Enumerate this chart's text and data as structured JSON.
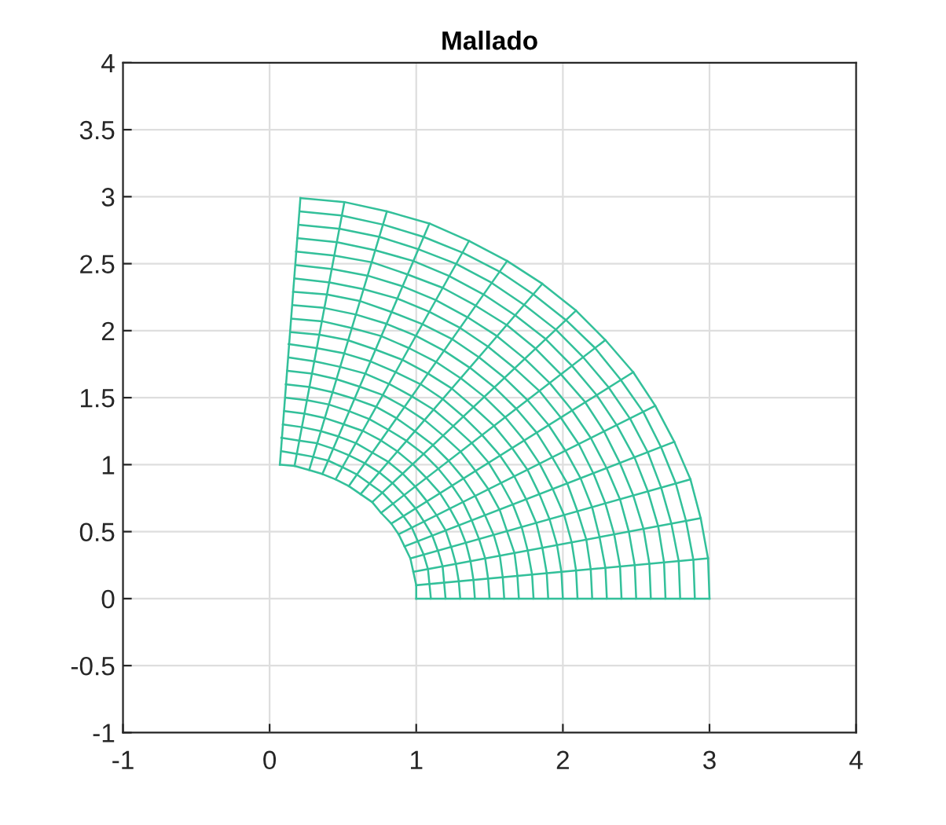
{
  "chart_data": {
    "type": "line",
    "title": "Mallado",
    "xlim": [
      -1,
      4
    ],
    "ylim": [
      -1,
      4
    ],
    "xticks": [
      -1,
      0,
      1,
      2,
      3,
      4
    ],
    "yticks": [
      -1,
      -0.5,
      0,
      0.5,
      1,
      1.5,
      2,
      2.5,
      3,
      3.5,
      4
    ],
    "grid": true,
    "series": [
      {
        "color": "#33c09a",
        "x": [
          1.0,
          1.0,
          0.98,
          0.96,
          0.92,
          0.88,
          0.83,
          0.76,
          0.7,
          0.62,
          0.54,
          0.45,
          0.36,
          0.27,
          0.17,
          0.07
        ],
        "values": [
          0.0,
          0.1,
          0.2,
          0.3,
          0.39,
          0.48,
          0.56,
          0.64,
          0.72,
          0.78,
          0.84,
          0.89,
          0.93,
          0.96,
          0.99,
          1.0
        ]
      },
      {
        "color": "#33c09a",
        "x": [
          1.1,
          1.09,
          1.08,
          1.05,
          1.01,
          0.97,
          0.91,
          0.84,
          0.77,
          0.68,
          0.59,
          0.5,
          0.4,
          0.29,
          0.19,
          0.08
        ],
        "values": [
          0.0,
          0.11,
          0.22,
          0.33,
          0.43,
          0.53,
          0.62,
          0.71,
          0.79,
          0.86,
          0.93,
          0.98,
          1.03,
          1.06,
          1.08,
          1.1
        ]
      },
      {
        "color": "#33c09a",
        "x": [
          1.2,
          1.19,
          1.18,
          1.15,
          1.11,
          1.05,
          0.99,
          0.92,
          0.84,
          0.75,
          0.65,
          0.54,
          0.43,
          0.32,
          0.2,
          0.08
        ],
        "values": [
          0.0,
          0.12,
          0.24,
          0.35,
          0.47,
          0.58,
          0.68,
          0.77,
          0.86,
          0.94,
          1.01,
          1.07,
          1.12,
          1.16,
          1.18,
          1.2
        ]
      },
      {
        "color": "#33c09a",
        "x": [
          1.3,
          1.29,
          1.27,
          1.24,
          1.2,
          1.14,
          1.07,
          0.99,
          0.91,
          0.81,
          0.7,
          0.59,
          0.47,
          0.35,
          0.22,
          0.09
        ],
        "values": [
          0.0,
          0.13,
          0.26,
          0.38,
          0.51,
          0.62,
          0.73,
          0.84,
          0.93,
          1.02,
          1.09,
          1.16,
          1.21,
          1.25,
          1.28,
          1.3
        ]
      },
      {
        "color": "#33c09a",
        "x": [
          1.4,
          1.39,
          1.37,
          1.34,
          1.29,
          1.23,
          1.16,
          1.07,
          0.98,
          0.87,
          0.76,
          0.64,
          0.51,
          0.37,
          0.24,
          0.1
        ],
        "values": [
          0.0,
          0.14,
          0.28,
          0.41,
          0.55,
          0.67,
          0.79,
          0.9,
          1.0,
          1.1,
          1.18,
          1.25,
          1.3,
          1.35,
          1.38,
          1.4
        ]
      },
      {
        "color": "#33c09a",
        "x": [
          1.5,
          1.49,
          1.47,
          1.43,
          1.38,
          1.32,
          1.24,
          1.15,
          1.05,
          0.93,
          0.81,
          0.68,
          0.54,
          0.4,
          0.26,
          0.11
        ],
        "values": [
          0.0,
          0.15,
          0.3,
          0.44,
          0.58,
          0.72,
          0.85,
          0.97,
          1.08,
          1.18,
          1.26,
          1.34,
          1.4,
          1.45,
          1.48,
          1.5
        ]
      },
      {
        "color": "#33c09a",
        "x": [
          1.6,
          1.59,
          1.57,
          1.53,
          1.47,
          1.4,
          1.32,
          1.22,
          1.11,
          0.99,
          0.86,
          0.73,
          0.58,
          0.43,
          0.27,
          0.11
        ],
        "values": [
          0.0,
          0.16,
          0.32,
          0.47,
          0.62,
          0.77,
          0.9,
          1.03,
          1.15,
          1.25,
          1.35,
          1.43,
          1.49,
          1.54,
          1.58,
          1.6
        ]
      },
      {
        "color": "#33c09a",
        "x": [
          1.7,
          1.69,
          1.67,
          1.62,
          1.57,
          1.49,
          1.4,
          1.3,
          1.18,
          1.06,
          0.92,
          0.77,
          0.62,
          0.45,
          0.29,
          0.12
        ],
        "values": [
          0.0,
          0.17,
          0.34,
          0.5,
          0.66,
          0.82,
          0.96,
          1.1,
          1.22,
          1.33,
          1.43,
          1.52,
          1.58,
          1.64,
          1.68,
          1.7
        ]
      },
      {
        "color": "#33c09a",
        "x": [
          1.8,
          1.79,
          1.76,
          1.72,
          1.66,
          1.58,
          1.49,
          1.38,
          1.25,
          1.12,
          0.97,
          0.82,
          0.65,
          0.48,
          0.31,
          0.13
        ],
        "values": [
          0.0,
          0.18,
          0.36,
          0.53,
          0.7,
          0.86,
          1.02,
          1.16,
          1.29,
          1.41,
          1.51,
          1.6,
          1.68,
          1.73,
          1.77,
          1.8
        ]
      },
      {
        "color": "#33c09a",
        "x": [
          1.9,
          1.89,
          1.86,
          1.82,
          1.75,
          1.67,
          1.57,
          1.45,
          1.32,
          1.18,
          1.03,
          0.86,
          0.69,
          0.51,
          0.32,
          0.13
        ],
        "values": [
          0.0,
          0.19,
          0.38,
          0.56,
          0.74,
          0.91,
          1.07,
          1.22,
          1.36,
          1.49,
          1.6,
          1.69,
          1.77,
          1.83,
          1.87,
          1.9
        ]
      },
      {
        "color": "#33c09a",
        "x": [
          2.0,
          1.99,
          1.96,
          1.91,
          1.84,
          1.76,
          1.65,
          1.53,
          1.39,
          1.24,
          1.08,
          0.91,
          0.72,
          0.53,
          0.34,
          0.14
        ],
        "values": [
          0.0,
          0.2,
          0.4,
          0.59,
          0.78,
          0.96,
          1.13,
          1.29,
          1.43,
          1.57,
          1.68,
          1.78,
          1.86,
          1.93,
          1.97,
          1.99
        ]
      },
      {
        "color": "#33c09a",
        "x": [
          2.1,
          2.09,
          2.06,
          2.01,
          1.93,
          1.84,
          1.73,
          1.61,
          1.46,
          1.31,
          1.13,
          0.95,
          0.76,
          0.56,
          0.36,
          0.15
        ],
        "values": [
          0.0,
          0.21,
          0.42,
          0.62,
          0.82,
          1.01,
          1.19,
          1.35,
          1.51,
          1.64,
          1.77,
          1.87,
          1.96,
          2.02,
          2.07,
          2.09
        ]
      },
      {
        "color": "#33c09a",
        "x": [
          2.2,
          2.19,
          2.16,
          2.1,
          2.03,
          1.93,
          1.82,
          1.68,
          1.53,
          1.37,
          1.19,
          1.0,
          0.8,
          0.59,
          0.37,
          0.16
        ],
        "values": [
          0.0,
          0.22,
          0.44,
          0.65,
          0.86,
          1.05,
          1.24,
          1.42,
          1.58,
          1.72,
          1.85,
          1.96,
          2.05,
          2.12,
          2.17,
          2.19
        ]
      },
      {
        "color": "#33c09a",
        "x": [
          2.3,
          2.29,
          2.25,
          2.2,
          2.12,
          2.02,
          1.9,
          1.76,
          1.6,
          1.43,
          1.24,
          1.04,
          0.83,
          0.62,
          0.39,
          0.16
        ],
        "values": [
          0.0,
          0.23,
          0.46,
          0.68,
          0.9,
          1.1,
          1.3,
          1.48,
          1.65,
          1.8,
          1.94,
          2.05,
          2.14,
          2.22,
          2.27,
          2.29
        ]
      },
      {
        "color": "#33c09a",
        "x": [
          2.4,
          2.39,
          2.35,
          2.29,
          2.21,
          2.11,
          1.98,
          1.84,
          1.67,
          1.49,
          1.3,
          1.09,
          0.87,
          0.64,
          0.41,
          0.17
        ],
        "values": [
          0.0,
          0.24,
          0.48,
          0.71,
          0.93,
          1.15,
          1.36,
          1.55,
          1.72,
          1.88,
          2.02,
          2.14,
          2.24,
          2.31,
          2.36,
          2.39
        ]
      },
      {
        "color": "#33c09a",
        "x": [
          2.5,
          2.49,
          2.45,
          2.39,
          2.3,
          2.19,
          2.06,
          1.91,
          1.74,
          1.55,
          1.35,
          1.13,
          0.91,
          0.67,
          0.43,
          0.18
        ],
        "values": [
          0.0,
          0.25,
          0.5,
          0.74,
          0.97,
          1.2,
          1.41,
          1.61,
          1.79,
          1.96,
          2.1,
          2.23,
          2.33,
          2.41,
          2.46,
          2.49
        ]
      },
      {
        "color": "#33c09a",
        "x": [
          2.6,
          2.59,
          2.55,
          2.48,
          2.39,
          2.28,
          2.15,
          1.99,
          1.81,
          1.62,
          1.4,
          1.18,
          0.94,
          0.7,
          0.44,
          0.18
        ],
        "values": [
          0.0,
          0.26,
          0.52,
          0.77,
          1.01,
          1.25,
          1.47,
          1.67,
          1.87,
          2.04,
          2.19,
          2.32,
          2.42,
          2.51,
          2.56,
          2.59
        ]
      },
      {
        "color": "#33c09a",
        "x": [
          2.7,
          2.69,
          2.65,
          2.58,
          2.49,
          2.37,
          2.23,
          2.06,
          1.88,
          1.68,
          1.46,
          1.22,
          0.98,
          0.72,
          0.46,
          0.19
        ],
        "values": [
          0.0,
          0.27,
          0.54,
          0.8,
          1.05,
          1.29,
          1.52,
          1.74,
          1.94,
          2.11,
          2.27,
          2.41,
          2.52,
          2.6,
          2.66,
          2.69
        ]
      },
      {
        "color": "#33c09a",
        "x": [
          2.8,
          2.79,
          2.74,
          2.67,
          2.58,
          2.46,
          2.31,
          2.14,
          1.95,
          1.74,
          1.51,
          1.27,
          1.01,
          0.75,
          0.48,
          0.2
        ],
        "values": [
          0.0,
          0.28,
          0.56,
          0.83,
          1.09,
          1.34,
          1.58,
          1.8,
          2.01,
          2.19,
          2.36,
          2.5,
          2.61,
          2.7,
          2.76,
          2.79
        ]
      },
      {
        "color": "#33c09a",
        "x": [
          2.9,
          2.89,
          2.84,
          2.77,
          2.67,
          2.55,
          2.39,
          2.22,
          2.02,
          1.8,
          1.57,
          1.32,
          1.05,
          0.78,
          0.49,
          0.21
        ],
        "values": [
          0.0,
          0.29,
          0.58,
          0.86,
          1.13,
          1.39,
          1.64,
          1.87,
          2.08,
          2.27,
          2.44,
          2.58,
          2.7,
          2.79,
          2.86,
          2.89
        ]
      },
      {
        "color": "#33c09a",
        "x": [
          3.0,
          2.99,
          2.94,
          2.87,
          2.76,
          2.63,
          2.48,
          2.29,
          2.09,
          1.86,
          1.62,
          1.36,
          1.09,
          0.8,
          0.51,
          0.21
        ],
        "values": [
          0.0,
          0.3,
          0.6,
          0.89,
          1.17,
          1.44,
          1.69,
          1.93,
          2.15,
          2.35,
          2.52,
          2.67,
          2.8,
          2.89,
          2.96,
          2.99
        ]
      },
      {
        "color": "#33c09a",
        "x": [
          1.0,
          3.0
        ],
        "values": [
          0.0,
          0.0
        ]
      },
      {
        "color": "#33c09a",
        "x": [
          1.0,
          2.99
        ],
        "values": [
          0.1,
          0.3
        ]
      },
      {
        "color": "#33c09a",
        "x": [
          0.98,
          2.94
        ],
        "values": [
          0.2,
          0.6
        ]
      },
      {
        "color": "#33c09a",
        "x": [
          0.96,
          2.87
        ],
        "values": [
          0.3,
          0.89
        ]
      },
      {
        "color": "#33c09a",
        "x": [
          0.92,
          2.76
        ],
        "values": [
          0.39,
          1.17
        ]
      },
      {
        "color": "#33c09a",
        "x": [
          0.88,
          2.63
        ],
        "values": [
          0.48,
          1.44
        ]
      },
      {
        "color": "#33c09a",
        "x": [
          0.83,
          2.48
        ],
        "values": [
          0.56,
          1.69
        ]
      },
      {
        "color": "#33c09a",
        "x": [
          0.76,
          2.29
        ],
        "values": [
          0.64,
          1.93
        ]
      },
      {
        "color": "#33c09a",
        "x": [
          0.7,
          2.09
        ],
        "values": [
          0.72,
          2.15
        ]
      },
      {
        "color": "#33c09a",
        "x": [
          0.62,
          1.86
        ],
        "values": [
          0.78,
          2.35
        ]
      },
      {
        "color": "#33c09a",
        "x": [
          0.54,
          1.62
        ],
        "values": [
          0.84,
          2.52
        ]
      },
      {
        "color": "#33c09a",
        "x": [
          0.45,
          1.36
        ],
        "values": [
          0.89,
          2.67
        ]
      },
      {
        "color": "#33c09a",
        "x": [
          0.36,
          1.09
        ],
        "values": [
          0.93,
          2.8
        ]
      },
      {
        "color": "#33c09a",
        "x": [
          0.27,
          0.8
        ],
        "values": [
          0.96,
          2.89
        ]
      },
      {
        "color": "#33c09a",
        "x": [
          0.17,
          0.51
        ],
        "values": [
          0.99,
          2.96
        ]
      },
      {
        "color": "#33c09a",
        "x": [
          0.07,
          0.21
        ],
        "values": [
          1.0,
          2.99
        ]
      }
    ]
  }
}
